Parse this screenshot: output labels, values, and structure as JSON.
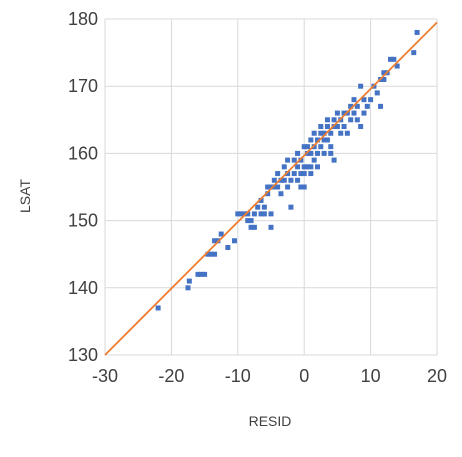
{
  "chart_data": {
    "type": "scatter",
    "title": "",
    "xlabel": "RESID",
    "ylabel": "LSAT",
    "xlim": [
      -30,
      20
    ],
    "ylim": [
      130,
      180
    ],
    "xticks": [
      -30,
      -20,
      -10,
      0,
      10,
      20
    ],
    "yticks": [
      130,
      140,
      150,
      160,
      170,
      180
    ],
    "xtick_labels": [
      "-30",
      "-20",
      "-10",
      "0",
      "10",
      "20"
    ],
    "ytick_labels": [
      "130",
      "140",
      "150",
      "160",
      "170",
      "180"
    ],
    "grid": true,
    "legend": "none",
    "colors": {
      "points": "#4472c4",
      "fit_line": "#ed7d31",
      "grid": "#d9d9d9",
      "text": "#404040"
    },
    "trendline": {
      "type": "linear",
      "x": [
        -30,
        20
      ],
      "y": [
        130,
        179.5
      ]
    },
    "points": [
      {
        "x": -22.0,
        "y": 137
      },
      {
        "x": -17.5,
        "y": 140
      },
      {
        "x": -17.3,
        "y": 141
      },
      {
        "x": -16.0,
        "y": 142
      },
      {
        "x": -15.5,
        "y": 142
      },
      {
        "x": -15.0,
        "y": 142
      },
      {
        "x": -14.5,
        "y": 145
      },
      {
        "x": -14.0,
        "y": 145
      },
      {
        "x": -13.5,
        "y": 145
      },
      {
        "x": -13.5,
        "y": 147
      },
      {
        "x": -13.0,
        "y": 147
      },
      {
        "x": -12.5,
        "y": 148
      },
      {
        "x": -11.5,
        "y": 146
      },
      {
        "x": -10.5,
        "y": 147
      },
      {
        "x": -10.0,
        "y": 151
      },
      {
        "x": -9.5,
        "y": 151
      },
      {
        "x": -9.0,
        "y": 151
      },
      {
        "x": -8.5,
        "y": 151
      },
      {
        "x": -8.5,
        "y": 150
      },
      {
        "x": -8.0,
        "y": 150
      },
      {
        "x": -8.0,
        "y": 149
      },
      {
        "x": -7.5,
        "y": 151
      },
      {
        "x": -7.5,
        "y": 149
      },
      {
        "x": -7.0,
        "y": 152
      },
      {
        "x": -6.5,
        "y": 151
      },
      {
        "x": -6.5,
        "y": 153
      },
      {
        "x": -6.0,
        "y": 151
      },
      {
        "x": -6.0,
        "y": 152
      },
      {
        "x": -5.5,
        "y": 155
      },
      {
        "x": -5.5,
        "y": 154
      },
      {
        "x": -5.0,
        "y": 155
      },
      {
        "x": -5.0,
        "y": 151
      },
      {
        "x": -5.0,
        "y": 149
      },
      {
        "x": -4.5,
        "y": 155
      },
      {
        "x": -4.5,
        "y": 156
      },
      {
        "x": -4.0,
        "y": 155
      },
      {
        "x": -4.0,
        "y": 157
      },
      {
        "x": -3.5,
        "y": 156
      },
      {
        "x": -3.5,
        "y": 154
      },
      {
        "x": -3.0,
        "y": 156
      },
      {
        "x": -3.0,
        "y": 158
      },
      {
        "x": -2.5,
        "y": 157
      },
      {
        "x": -2.5,
        "y": 159
      },
      {
        "x": -2.5,
        "y": 155
      },
      {
        "x": -2.0,
        "y": 156
      },
      {
        "x": -2.0,
        "y": 152
      },
      {
        "x": -1.5,
        "y": 159
      },
      {
        "x": -1.5,
        "y": 157
      },
      {
        "x": -1.0,
        "y": 158
      },
      {
        "x": -1.0,
        "y": 156
      },
      {
        "x": -1.0,
        "y": 160
      },
      {
        "x": -0.5,
        "y": 157
      },
      {
        "x": -0.5,
        "y": 159
      },
      {
        "x": -0.5,
        "y": 155
      },
      {
        "x": 0.0,
        "y": 158
      },
      {
        "x": 0.0,
        "y": 161
      },
      {
        "x": 0.0,
        "y": 157
      },
      {
        "x": 0.0,
        "y": 155
      },
      {
        "x": 0.5,
        "y": 160
      },
      {
        "x": 0.5,
        "y": 158
      },
      {
        "x": 0.5,
        "y": 161
      },
      {
        "x": 1.0,
        "y": 160
      },
      {
        "x": 1.0,
        "y": 158
      },
      {
        "x": 1.0,
        "y": 157
      },
      {
        "x": 1.0,
        "y": 162
      },
      {
        "x": 1.5,
        "y": 161
      },
      {
        "x": 1.5,
        "y": 159
      },
      {
        "x": 1.5,
        "y": 163
      },
      {
        "x": 2.0,
        "y": 160
      },
      {
        "x": 2.0,
        "y": 162
      },
      {
        "x": 2.0,
        "y": 158
      },
      {
        "x": 2.5,
        "y": 161
      },
      {
        "x": 2.5,
        "y": 163
      },
      {
        "x": 2.5,
        "y": 164
      },
      {
        "x": 3.0,
        "y": 162
      },
      {
        "x": 3.0,
        "y": 160
      },
      {
        "x": 3.0,
        "y": 163
      },
      {
        "x": 3.5,
        "y": 164
      },
      {
        "x": 3.5,
        "y": 162
      },
      {
        "x": 3.5,
        "y": 165
      },
      {
        "x": 4.0,
        "y": 163
      },
      {
        "x": 4.0,
        "y": 161
      },
      {
        "x": 4.0,
        "y": 160
      },
      {
        "x": 4.5,
        "y": 165
      },
      {
        "x": 4.5,
        "y": 164
      },
      {
        "x": 4.5,
        "y": 159
      },
      {
        "x": 5.0,
        "y": 166
      },
      {
        "x": 5.0,
        "y": 164
      },
      {
        "x": 5.5,
        "y": 165
      },
      {
        "x": 5.5,
        "y": 163
      },
      {
        "x": 6.0,
        "y": 166
      },
      {
        "x": 6.0,
        "y": 164
      },
      {
        "x": 6.5,
        "y": 166
      },
      {
        "x": 6.5,
        "y": 163
      },
      {
        "x": 7.0,
        "y": 167
      },
      {
        "x": 7.0,
        "y": 165
      },
      {
        "x": 7.5,
        "y": 168
      },
      {
        "x": 7.5,
        "y": 166
      },
      {
        "x": 8.0,
        "y": 167
      },
      {
        "x": 8.0,
        "y": 165
      },
      {
        "x": 8.5,
        "y": 170
      },
      {
        "x": 8.5,
        "y": 164
      },
      {
        "x": 9.0,
        "y": 168
      },
      {
        "x": 9.0,
        "y": 166
      },
      {
        "x": 9.5,
        "y": 167
      },
      {
        "x": 10.0,
        "y": 168
      },
      {
        "x": 10.5,
        "y": 170
      },
      {
        "x": 11.0,
        "y": 169
      },
      {
        "x": 11.5,
        "y": 171
      },
      {
        "x": 11.5,
        "y": 167
      },
      {
        "x": 12.0,
        "y": 171
      },
      {
        "x": 12.0,
        "y": 172
      },
      {
        "x": 12.5,
        "y": 172
      },
      {
        "x": 13.0,
        "y": 174
      },
      {
        "x": 13.5,
        "y": 174
      },
      {
        "x": 14.0,
        "y": 173
      },
      {
        "x": 16.5,
        "y": 175
      },
      {
        "x": 17.0,
        "y": 178
      }
    ]
  }
}
